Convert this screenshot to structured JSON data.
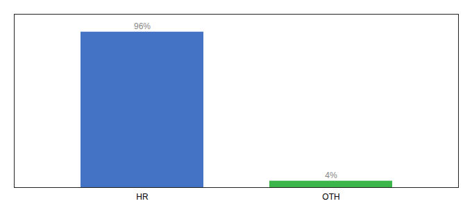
{
  "chart_data": {
    "type": "bar",
    "categories": [
      "HR",
      "OTH"
    ],
    "values": [
      96,
      4
    ],
    "value_labels": [
      "96%",
      "4%"
    ],
    "colors": [
      "#4472c4",
      "#3cb54a"
    ],
    "ylim": [
      0,
      107
    ],
    "data_labels": true,
    "tick_labels": "x",
    "grid": false
  }
}
